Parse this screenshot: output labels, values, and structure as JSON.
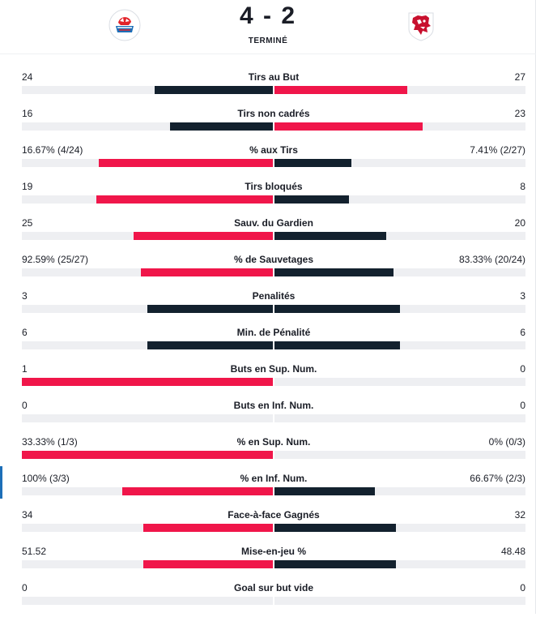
{
  "match": {
    "score": "4 - 2",
    "status": "TERMINÉ",
    "home_team_logo_icon": "zsc-lions-logo-icon",
    "away_team_logo_icon": "lausanne-lion-logo-icon"
  },
  "colors": {
    "winner": "#f0164a",
    "loser": "#13212e",
    "track": "#eeeff2"
  },
  "stats": [
    {
      "label": "Tirs au But",
      "home": "24",
      "away": "27",
      "home_value": 24,
      "away_value": 27
    },
    {
      "label": "Tirs non cadrés",
      "home": "16",
      "away": "23",
      "home_value": 16,
      "away_value": 23
    },
    {
      "label": "% aux Tirs",
      "home": "16.67% (4/24)",
      "away": "7.41% (2/27)",
      "home_value": 16.67,
      "away_value": 7.41
    },
    {
      "label": "Tirs bloqués",
      "home": "19",
      "away": "8",
      "home_value": 19,
      "away_value": 8
    },
    {
      "label": "Sauv. du Gardien",
      "home": "25",
      "away": "20",
      "home_value": 25,
      "away_value": 20
    },
    {
      "label": "% de Sauvetages",
      "home": "92.59% (25/27)",
      "away": "83.33% (20/24)",
      "home_value": 92.59,
      "away_value": 83.33
    },
    {
      "label": "Penalités",
      "home": "3",
      "away": "3",
      "home_value": 3,
      "away_value": 3
    },
    {
      "label": "Min. de Pénalité",
      "home": "6",
      "away": "6",
      "home_value": 6,
      "away_value": 6
    },
    {
      "label": "Buts en Sup. Num.",
      "home": "1",
      "away": "0",
      "home_value": 1,
      "away_value": 0
    },
    {
      "label": "Buts en Inf. Num.",
      "home": "0",
      "away": "0",
      "home_value": 0,
      "away_value": 0
    },
    {
      "label": "% en Sup. Num.",
      "home": "33.33% (1/3)",
      "away": "0% (0/3)",
      "home_value": 33.33,
      "away_value": 0
    },
    {
      "label": "% en Inf. Num.",
      "home": "100% (3/3)",
      "away": "66.67% (2/3)",
      "home_value": 100,
      "away_value": 66.67
    },
    {
      "label": "Face-à-face Gagnés",
      "home": "34",
      "away": "32",
      "home_value": 34,
      "away_value": 32
    },
    {
      "label": "Mise-en-jeu %",
      "home": "51.52",
      "away": "48.48",
      "home_value": 51.52,
      "away_value": 48.48
    },
    {
      "label": "Goal sur but vide",
      "home": "0",
      "away": "0",
      "home_value": 0,
      "away_value": 0
    }
  ]
}
